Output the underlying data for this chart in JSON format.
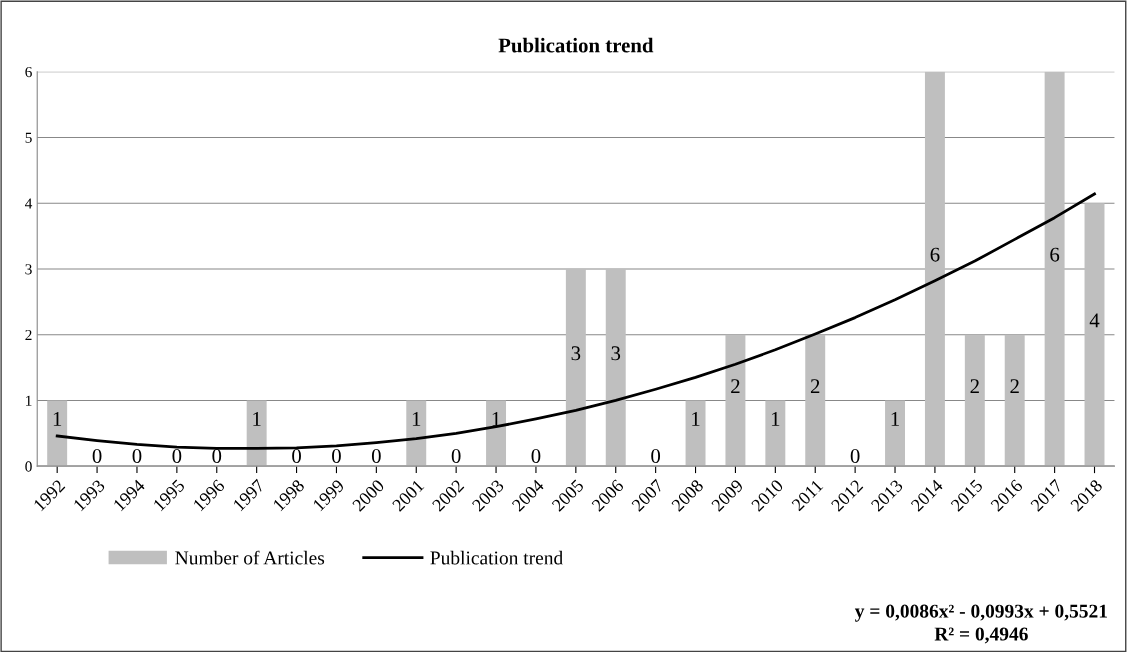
{
  "chart_data": {
    "type": "bar",
    "title": "Publication trend",
    "categories": [
      "1992",
      "1993",
      "1994",
      "1995",
      "1996",
      "1997",
      "1998",
      "1999",
      "2000",
      "2001",
      "2002",
      "2003",
      "2004",
      "2005",
      "2006",
      "2007",
      "2008",
      "2009",
      "2010",
      "2011",
      "2012",
      "2013",
      "2014",
      "2015",
      "2016",
      "2017",
      "2018"
    ],
    "series": [
      {
        "name": "Number of Articles",
        "color": "#bfbfbf",
        "values": [
          1,
          0,
          0,
          0,
          0,
          1,
          0,
          0,
          0,
          1,
          0,
          1,
          0,
          3,
          3,
          0,
          1,
          2,
          1,
          2,
          0,
          1,
          6,
          2,
          2,
          6,
          4
        ],
        "value_labels": [
          "1",
          "0",
          "0",
          "0",
          "0",
          "1",
          "0",
          "0",
          "0",
          "1",
          "0",
          "1",
          "0",
          "3",
          "3",
          "0",
          "1",
          "2",
          "1",
          "2",
          "0",
          "1",
          "6",
          "2",
          "2",
          "6",
          "4"
        ]
      },
      {
        "name": "Publication trend",
        "type": "line",
        "color": "#000000",
        "values": [
          0.46,
          0.39,
          0.33,
          0.29,
          0.27,
          0.27,
          0.28,
          0.31,
          0.36,
          0.42,
          0.5,
          0.6,
          0.72,
          0.85,
          1.0,
          1.17,
          1.35,
          1.55,
          1.77,
          2.01,
          2.26,
          2.53,
          2.82,
          3.12,
          3.45,
          3.78,
          4.14
        ]
      }
    ],
    "ylim": [
      0,
      6
    ],
    "yticks": [
      0,
      1,
      2,
      3,
      4,
      5,
      6
    ],
    "grid": "y",
    "legend": "bottom",
    "annotations": [
      "y = 0,0086x² - 0,0993x + 0,5521",
      "R² = 0,4946"
    ]
  }
}
